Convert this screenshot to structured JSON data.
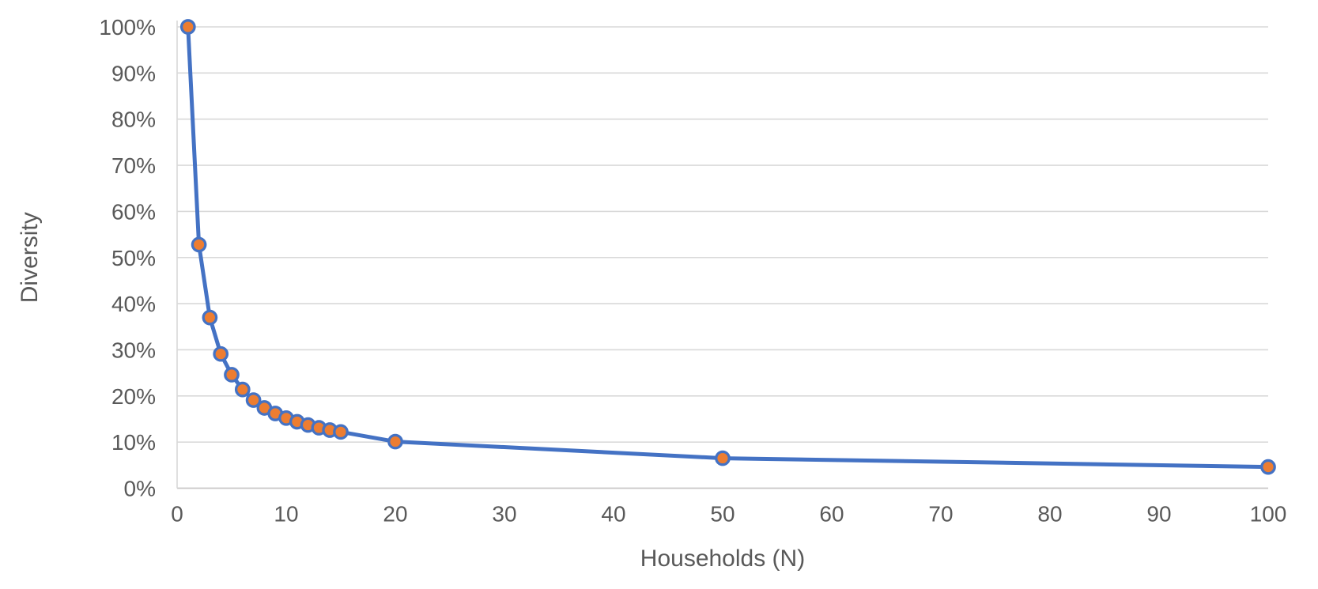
{
  "chart_data": {
    "type": "line",
    "title": "",
    "xlabel": "Households (N)",
    "ylabel": "Diversity",
    "x": [
      1,
      2,
      3,
      4,
      5,
      6,
      7,
      8,
      9,
      10,
      11,
      12,
      13,
      14,
      15,
      20,
      50,
      100
    ],
    "series": [
      {
        "name": "Diversity",
        "values": [
          100,
          52.8,
          37.0,
          29.1,
          24.6,
          21.4,
          19.1,
          17.4,
          16.2,
          15.2,
          14.4,
          13.7,
          13.1,
          12.6,
          12.2,
          10.1,
          6.5,
          4.6
        ]
      }
    ],
    "xlim": [
      0,
      100
    ],
    "ylim": [
      0,
      100
    ],
    "x_ticks": [
      0,
      10,
      20,
      30,
      40,
      50,
      60,
      70,
      80,
      90,
      100
    ],
    "x_tick_labels": [
      "0",
      "10",
      "20",
      "30",
      "40",
      "50",
      "60",
      "70",
      "80",
      "90",
      "100"
    ],
    "y_ticks": [
      0,
      10,
      20,
      30,
      40,
      50,
      60,
      70,
      80,
      90,
      100
    ],
    "y_tick_labels": [
      "0%",
      "10%",
      "20%",
      "30%",
      "40%",
      "50%",
      "60%",
      "70%",
      "80%",
      "90%",
      "100%"
    ],
    "grid": "horizontal",
    "legend_position": "none",
    "marker_style": "circle",
    "colors": {
      "line": "#4472C4",
      "marker_fill": "#ED7D31",
      "marker_stroke": "#4472C4",
      "gridline": "#D9D9D9",
      "axis_line": "#C9C7C7",
      "left_axis_line": "#D9D9D9",
      "text": "#595959",
      "background": "#FFFFFF"
    }
  }
}
